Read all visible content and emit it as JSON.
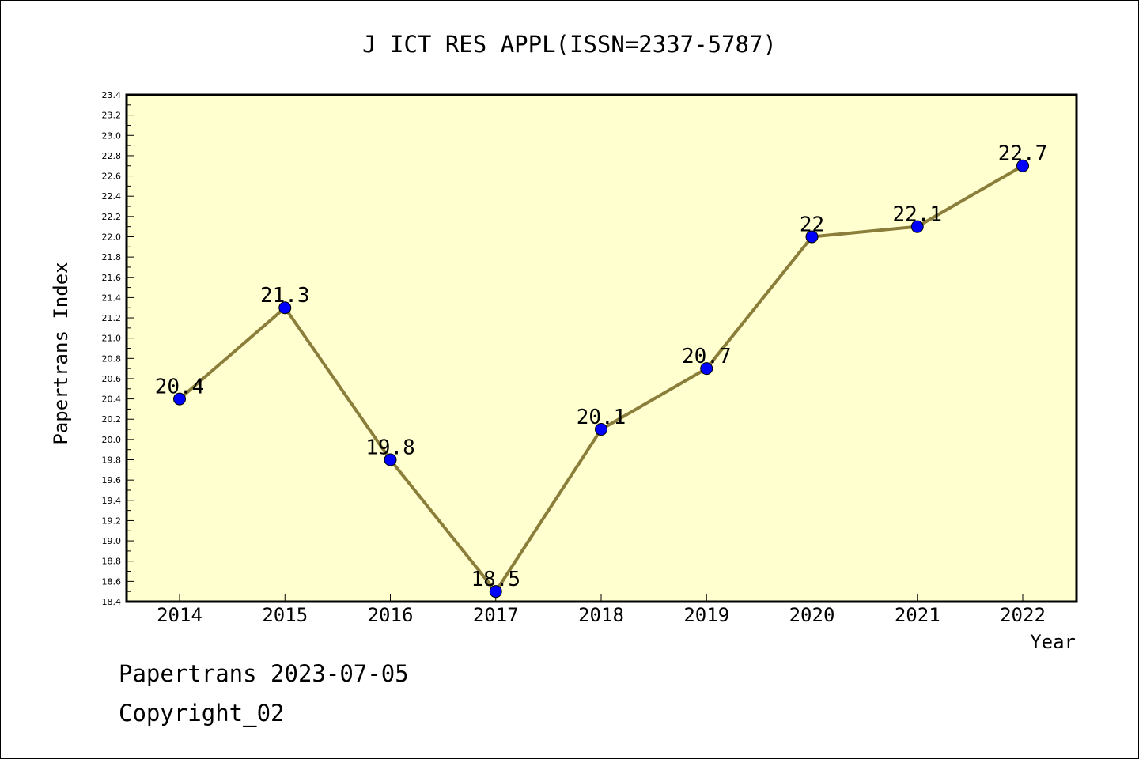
{
  "chart_data": {
    "type": "line",
    "title": "J ICT RES APPL(ISSN=2337-5787)",
    "xlabel": "Year",
    "ylabel": "Papertrans Index",
    "categories": [
      "2014",
      "2015",
      "2016",
      "2017",
      "2018",
      "2019",
      "2020",
      "2021",
      "2022"
    ],
    "values": [
      20.4,
      21.3,
      19.8,
      18.5,
      20.1,
      20.7,
      22.0,
      22.1,
      22.7
    ],
    "data_labels": [
      "20.4",
      "21.3",
      "19.8",
      "18.5",
      "20.1",
      "20.7",
      "22",
      "22.1",
      "22.7"
    ],
    "ylim": [
      18.4,
      23.4
    ],
    "y_ticks": [
      "18.4",
      "18.6",
      "18.8",
      "19.0",
      "19.2",
      "19.4",
      "19.6",
      "19.8",
      "20.0",
      "20.2",
      "20.4",
      "20.6",
      "20.8",
      "21.0",
      "21.2",
      "21.4",
      "21.6",
      "21.8",
      "22.0",
      "22.2",
      "22.4",
      "22.6",
      "22.8",
      "23.0",
      "23.2",
      "23.4"
    ],
    "grid": false,
    "colors": {
      "plot_background": "#ffffd0",
      "line": "#8b7d3a",
      "marker": "#0000ff"
    }
  },
  "footer": {
    "line1": "Papertrans 2023-07-05",
    "line2": "Copyright_02"
  }
}
